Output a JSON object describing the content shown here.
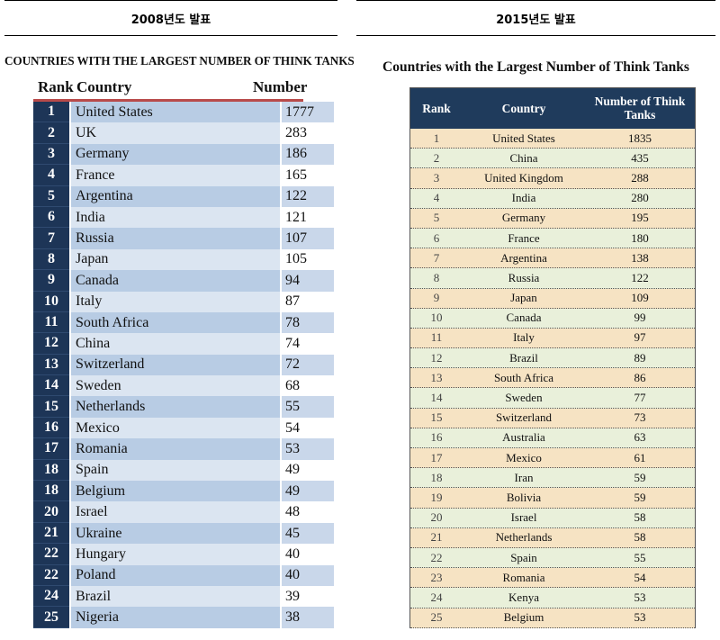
{
  "left": {
    "header": "2008년도 발표",
    "title": "COUNTRIES WITH THE LARGEST NUMBER OF THINK TANKS",
    "columns": [
      "Rank",
      "Country",
      "Number"
    ],
    "rows": [
      {
        "rank": "1",
        "country": "United States",
        "number": "1777"
      },
      {
        "rank": "2",
        "country": "UK",
        "number": "283"
      },
      {
        "rank": "3",
        "country": "Germany",
        "number": "186"
      },
      {
        "rank": "4",
        "country": "France",
        "number": "165"
      },
      {
        "rank": "5",
        "country": "Argentina",
        "number": "122"
      },
      {
        "rank": "6",
        "country": "India",
        "number": "121"
      },
      {
        "rank": "7",
        "country": "Russia",
        "number": "107"
      },
      {
        "rank": "8",
        "country": "Japan",
        "number": "105"
      },
      {
        "rank": "9",
        "country": "Canada",
        "number": "94"
      },
      {
        "rank": "10",
        "country": "Italy",
        "number": "87"
      },
      {
        "rank": "11",
        "country": "South Africa",
        "number": "78"
      },
      {
        "rank": "12",
        "country": "China",
        "number": "74"
      },
      {
        "rank": "13",
        "country": "Switzerland",
        "number": "72"
      },
      {
        "rank": "14",
        "country": "Sweden",
        "number": "68"
      },
      {
        "rank": "15",
        "country": "Netherlands",
        "number": "55"
      },
      {
        "rank": "16",
        "country": "Mexico",
        "number": "54"
      },
      {
        "rank": "17",
        "country": "Romania",
        "number": "53"
      },
      {
        "rank": "18",
        "country": "Spain",
        "number": "49"
      },
      {
        "rank": "18",
        "country": "Belgium",
        "number": "49"
      },
      {
        "rank": "20",
        "country": "Israel",
        "number": "48"
      },
      {
        "rank": "21",
        "country": "Ukraine",
        "number": "45"
      },
      {
        "rank": "22",
        "country": "Hungary",
        "number": "40"
      },
      {
        "rank": "22",
        "country": "Poland",
        "number": "40"
      },
      {
        "rank": "24",
        "country": "Brazil",
        "number": "39"
      },
      {
        "rank": "25",
        "country": "Nigeria",
        "number": "38"
      }
    ]
  },
  "right": {
    "header": "2015년도 발표",
    "title": "Countries with the Largest Number of Think Tanks",
    "columns": [
      "Rank",
      "Country",
      "Number of Think Tanks"
    ],
    "rows": [
      {
        "rank": "1",
        "country": "United States",
        "number": "1835"
      },
      {
        "rank": "2",
        "country": "China",
        "number": "435"
      },
      {
        "rank": "3",
        "country": "United Kingdom",
        "number": "288"
      },
      {
        "rank": "4",
        "country": "India",
        "number": "280"
      },
      {
        "rank": "5",
        "country": "Germany",
        "number": "195"
      },
      {
        "rank": "6",
        "country": "France",
        "number": "180"
      },
      {
        "rank": "7",
        "country": "Argentina",
        "number": "138"
      },
      {
        "rank": "8",
        "country": "Russia",
        "number": "122"
      },
      {
        "rank": "9",
        "country": "Japan",
        "number": "109"
      },
      {
        "rank": "10",
        "country": "Canada",
        "number": "99"
      },
      {
        "rank": "11",
        "country": "Italy",
        "number": "97"
      },
      {
        "rank": "12",
        "country": "Brazil",
        "number": "89"
      },
      {
        "rank": "13",
        "country": "South Africa",
        "number": "86"
      },
      {
        "rank": "14",
        "country": "Sweden",
        "number": "77"
      },
      {
        "rank": "15",
        "country": "Switzerland",
        "number": "73"
      },
      {
        "rank": "16",
        "country": "Australia",
        "number": "63"
      },
      {
        "rank": "17",
        "country": "Mexico",
        "number": "61"
      },
      {
        "rank": "18",
        "country": "Iran",
        "number": "59"
      },
      {
        "rank": "19",
        "country": "Bolivia",
        "number": "59"
      },
      {
        "rank": "20",
        "country": "Israel",
        "number": "58"
      },
      {
        "rank": "21",
        "country": "Netherlands",
        "number": "58"
      },
      {
        "rank": "22",
        "country": "Spain",
        "number": "55"
      },
      {
        "rank": "23",
        "country": "Romania",
        "number": "54"
      },
      {
        "rank": "24",
        "country": "Kenya",
        "number": "53"
      },
      {
        "rank": "25",
        "country": "Belgium",
        "number": "53"
      }
    ]
  },
  "colors": {
    "left_rank_bg": "#1d3557",
    "left_header_rule": "#b84a4a",
    "left_row_odd": "#b8cce4",
    "left_row_even": "#dbe5f1",
    "right_header_bg": "#1f3b5c",
    "right_row_odd": "#f6e3c3",
    "right_row_even": "#e9f0da"
  }
}
